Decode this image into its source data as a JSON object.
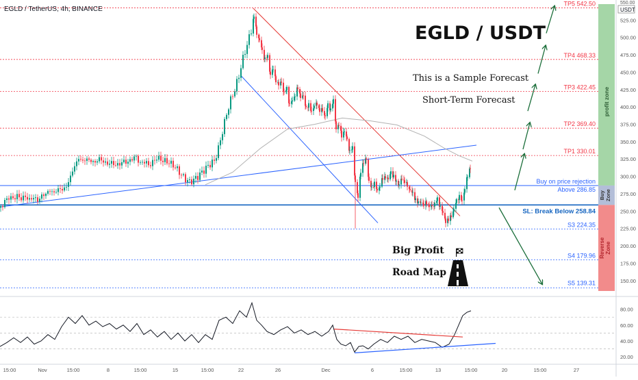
{
  "header": {
    "symbol_line": "EGLD / TetherUS, 4h, BINANCE",
    "top_right_price": "550.00",
    "currency": "USDT"
  },
  "title": "EGLD / USDT",
  "notes": [
    "This is a Sample Forecast",
    "Short-Term Forecast"
  ],
  "roadmap": {
    "line1": "Big Profit",
    "line2": "Road Map"
  },
  "zones": {
    "profit": "profit zone",
    "buy": "Buy Zone",
    "reverse": "Reverse Zone"
  },
  "colors": {
    "up": "#089981",
    "down": "#f23645",
    "target": "#f23645",
    "support": "#2962ff",
    "arrow": "#1b6e3a",
    "trend_down": "#e53935",
    "trend_up": "#2962ff",
    "ma": "#b2b2b2",
    "profit_zone": "#a5d6a7",
    "buy_zone": "#b3bed8",
    "reverse_zone": "#f28b8b"
  },
  "chart_data": [
    {
      "type": "candlestick",
      "y_ticks": [
        "525.00",
        "500.00",
        "475.00",
        "450.00",
        "425.00",
        "400.00",
        "375.00",
        "350.00",
        "325.00",
        "300.00",
        "275.00",
        "250.00",
        "225.00",
        "200.00",
        "175.00",
        "150.00"
      ],
      "x_labels": [
        "15:00",
        "Nov",
        "15:00",
        "8",
        "15:00",
        "15",
        "15:00",
        "22",
        "26",
        "Dec",
        "6",
        "15:00",
        "13",
        "15:00",
        "20",
        "15:00",
        "27"
      ],
      "ylim": [
        135,
        548
      ],
      "levels": [
        {
          "label": "TP5 542.50",
          "value": 542.5,
          "kind": "target"
        },
        {
          "label": "TP4 468.33",
          "value": 468.33,
          "kind": "target"
        },
        {
          "label": "TP3 422.45",
          "value": 422.45,
          "kind": "target"
        },
        {
          "label": "TP2 369.40",
          "value": 369.4,
          "kind": "target"
        },
        {
          "label": "TP1 330.01",
          "value": 330.01,
          "kind": "target"
        },
        {
          "label": "Buy on price rejection",
          "value": 286.85,
          "kind": "buy"
        },
        {
          "label": "Above 286.85",
          "value": 286.85,
          "kind": "buy"
        },
        {
          "label": "SL: Break Below 258.84",
          "value": 258.84,
          "kind": "stop"
        },
        {
          "label": "S3 224.35",
          "value": 224.35,
          "kind": "support"
        },
        {
          "label": "S4 179.96",
          "value": 179.96,
          "kind": "support"
        },
        {
          "label": "S5 139.31",
          "value": 139.31,
          "kind": "support"
        }
      ],
      "price_path": [
        [
          0,
          255
        ],
        [
          6,
          264
        ],
        [
          12,
          270
        ],
        [
          18,
          268
        ],
        [
          24,
          272
        ],
        [
          30,
          268
        ],
        [
          36,
          271
        ],
        [
          42,
          266
        ],
        [
          48,
          270
        ],
        [
          54,
          265
        ],
        [
          60,
          272
        ],
        [
          66,
          275
        ],
        [
          72,
          280
        ],
        [
          78,
          276
        ],
        [
          84,
          282
        ],
        [
          90,
          281
        ],
        [
          96,
          285
        ],
        [
          102,
          300
        ],
        [
          108,
          315
        ],
        [
          114,
          326
        ],
        [
          120,
          322
        ],
        [
          126,
          325
        ],
        [
          132,
          322
        ],
        [
          138,
          320
        ],
        [
          144,
          326
        ],
        [
          150,
          321
        ],
        [
          156,
          318
        ],
        [
          162,
          320
        ],
        [
          168,
          316
        ],
        [
          174,
          318
        ],
        [
          180,
          322
        ],
        [
          186,
          320
        ],
        [
          192,
          326
        ],
        [
          198,
          328
        ],
        [
          204,
          318
        ],
        [
          210,
          322
        ],
        [
          216,
          316
        ],
        [
          222,
          320
        ],
        [
          228,
          327
        ],
        [
          234,
          324
        ],
        [
          240,
          322
        ],
        [
          246,
          320
        ],
        [
          252,
          316
        ],
        [
          258,
          310
        ],
        [
          264,
          302
        ],
        [
          270,
          296
        ],
        [
          276,
          292
        ],
        [
          282,
          295
        ],
        [
          288,
          300
        ],
        [
          294,
          306
        ],
        [
          300,
          312
        ],
        [
          306,
          318
        ],
        [
          312,
          322
        ],
        [
          318,
          340
        ],
        [
          324,
          365
        ],
        [
          330,
          390
        ],
        [
          336,
          410
        ],
        [
          342,
          425
        ],
        [
          348,
          445
        ],
        [
          354,
          470
        ],
        [
          360,
          490
        ],
        [
          366,
          510
        ],
        [
          370,
          532
        ],
        [
          374,
          505
        ],
        [
          378,
          495
        ],
        [
          382,
          478
        ],
        [
          386,
          470
        ],
        [
          390,
          472
        ],
        [
          394,
          450
        ],
        [
          398,
          455
        ],
        [
          402,
          440
        ],
        [
          406,
          430
        ],
        [
          410,
          434
        ],
        [
          414,
          418
        ],
        [
          418,
          426
        ],
        [
          422,
          405
        ],
        [
          426,
          410
        ],
        [
          430,
          420
        ],
        [
          434,
          426
        ],
        [
          438,
          415
        ],
        [
          442,
          412
        ],
        [
          446,
          398
        ],
        [
          450,
          402
        ],
        [
          454,
          395
        ],
        [
          458,
          404
        ],
        [
          462,
          405
        ],
        [
          466,
          396
        ],
        [
          470,
          392
        ],
        [
          474,
          386
        ],
        [
          478,
          400
        ],
        [
          482,
          398
        ],
        [
          486,
          410
        ],
        [
          490,
          372
        ],
        [
          494,
          375
        ],
        [
          498,
          358
        ],
        [
          502,
          364
        ],
        [
          506,
          350
        ],
        [
          510,
          336
        ],
        [
          514,
          340
        ],
        [
          518,
          295
        ],
        [
          522,
          270
        ],
        [
          526,
          310
        ],
        [
          530,
          318
        ],
        [
          534,
          324
        ],
        [
          538,
          290
        ],
        [
          542,
          282
        ],
        [
          546,
          292
        ],
        [
          550,
          280
        ],
        [
          554,
          290
        ],
        [
          558,
          296
        ],
        [
          562,
          300
        ],
        [
          566,
          292
        ],
        [
          570,
          306
        ],
        [
          574,
          298
        ],
        [
          578,
          294
        ],
        [
          582,
          290
        ],
        [
          586,
          298
        ],
        [
          590,
          294
        ],
        [
          594,
          284
        ],
        [
          598,
          280
        ],
        [
          602,
          272
        ],
        [
          606,
          268
        ],
        [
          610,
          262
        ],
        [
          614,
          266
        ],
        [
          618,
          260
        ],
        [
          622,
          262
        ],
        [
          626,
          256
        ],
        [
          630,
          254
        ],
        [
          634,
          260
        ],
        [
          638,
          266
        ],
        [
          642,
          260
        ],
        [
          646,
          248
        ],
        [
          650,
          238
        ],
        [
          654,
          236
        ],
        [
          658,
          242
        ],
        [
          662,
          250
        ],
        [
          666,
          264
        ],
        [
          670,
          272
        ],
        [
          674,
          265
        ],
        [
          678,
          286
        ],
        [
          682,
          300
        ],
        [
          686,
          314
        ],
        [
          688,
          328
        ]
      ],
      "ma_path": [
        [
          300,
          288
        ],
        [
          340,
          306
        ],
        [
          380,
          340
        ],
        [
          420,
          368
        ],
        [
          460,
          375
        ],
        [
          500,
          384
        ],
        [
          540,
          380
        ],
        [
          580,
          374
        ],
        [
          620,
          358
        ],
        [
          650,
          340
        ],
        [
          670,
          330
        ],
        [
          690,
          322
        ]
      ],
      "trendlines": [
        {
          "name": "resistance-down",
          "from": [
            370,
            542
          ],
          "to": [
            672,
            243
          ]
        },
        {
          "name": "channel-down",
          "from": [
            352,
            445
          ],
          "to": [
            552,
            233
          ]
        },
        {
          "name": "rising-support",
          "from": [
            0,
            256
          ],
          "to": [
            696,
            345
          ]
        }
      ],
      "forecast_arrows": [
        {
          "from": [
            752,
            280
          ],
          "to": [
            766,
            332
          ]
        },
        {
          "from": [
            764,
            339
          ],
          "to": [
            774,
            377
          ]
        },
        {
          "from": [
            771,
            394
          ],
          "to": [
            782,
            432
          ]
        },
        {
          "from": [
            786,
            448
          ],
          "to": [
            797,
            488
          ]
        },
        {
          "from": [
            798,
            506
          ],
          "to": [
            810,
            545
          ]
        },
        {
          "from": [
            729,
            255
          ],
          "to": [
            792,
            145
          ]
        }
      ]
    },
    {
      "type": "line",
      "name": "rsi",
      "y_ticks": [
        "80.00",
        "60.00",
        "40.00",
        "20.00"
      ],
      "ylim": [
        15,
        90
      ],
      "values": [
        [
          0,
          33
        ],
        [
          10,
          38
        ],
        [
          20,
          44
        ],
        [
          30,
          38
        ],
        [
          40,
          45
        ],
        [
          50,
          36
        ],
        [
          60,
          40
        ],
        [
          70,
          48
        ],
        [
          80,
          42
        ],
        [
          90,
          58
        ],
        [
          100,
          70
        ],
        [
          110,
          62
        ],
        [
          120,
          72
        ],
        [
          130,
          60
        ],
        [
          140,
          65
        ],
        [
          150,
          58
        ],
        [
          160,
          62
        ],
        [
          170,
          55
        ],
        [
          180,
          60
        ],
        [
          190,
          52
        ],
        [
          200,
          62
        ],
        [
          210,
          48
        ],
        [
          220,
          54
        ],
        [
          230,
          45
        ],
        [
          240,
          52
        ],
        [
          250,
          42
        ],
        [
          260,
          50
        ],
        [
          270,
          40
        ],
        [
          280,
          48
        ],
        [
          290,
          38
        ],
        [
          300,
          48
        ],
        [
          310,
          42
        ],
        [
          320,
          66
        ],
        [
          330,
          70
        ],
        [
          340,
          62
        ],
        [
          350,
          78
        ],
        [
          360,
          70
        ],
        [
          368,
          88
        ],
        [
          375,
          66
        ],
        [
          382,
          60
        ],
        [
          390,
          52
        ],
        [
          400,
          48
        ],
        [
          410,
          54
        ],
        [
          420,
          58
        ],
        [
          430,
          50
        ],
        [
          440,
          54
        ],
        [
          450,
          48
        ],
        [
          460,
          52
        ],
        [
          470,
          46
        ],
        [
          480,
          52
        ],
        [
          486,
          60
        ],
        [
          492,
          42
        ],
        [
          498,
          36
        ],
        [
          505,
          34
        ],
        [
          512,
          38
        ],
        [
          518,
          26
        ],
        [
          524,
          33
        ],
        [
          530,
          34
        ],
        [
          538,
          30
        ],
        [
          546,
          36
        ],
        [
          556,
          42
        ],
        [
          566,
          38
        ],
        [
          576,
          46
        ],
        [
          586,
          42
        ],
        [
          596,
          46
        ],
        [
          606,
          38
        ],
        [
          616,
          42
        ],
        [
          626,
          40
        ],
        [
          636,
          38
        ],
        [
          646,
          32
        ],
        [
          656,
          36
        ],
        [
          664,
          48
        ],
        [
          670,
          60
        ],
        [
          676,
          72
        ],
        [
          682,
          76
        ],
        [
          688,
          78
        ]
      ],
      "trendlines": [
        {
          "name": "rsi-resistance",
          "from": [
            488,
            55
          ],
          "to": [
            676,
            45
          ]
        },
        {
          "name": "rsi-support",
          "from": [
            518,
            25
          ],
          "to": [
            724,
            37
          ]
        }
      ]
    }
  ]
}
